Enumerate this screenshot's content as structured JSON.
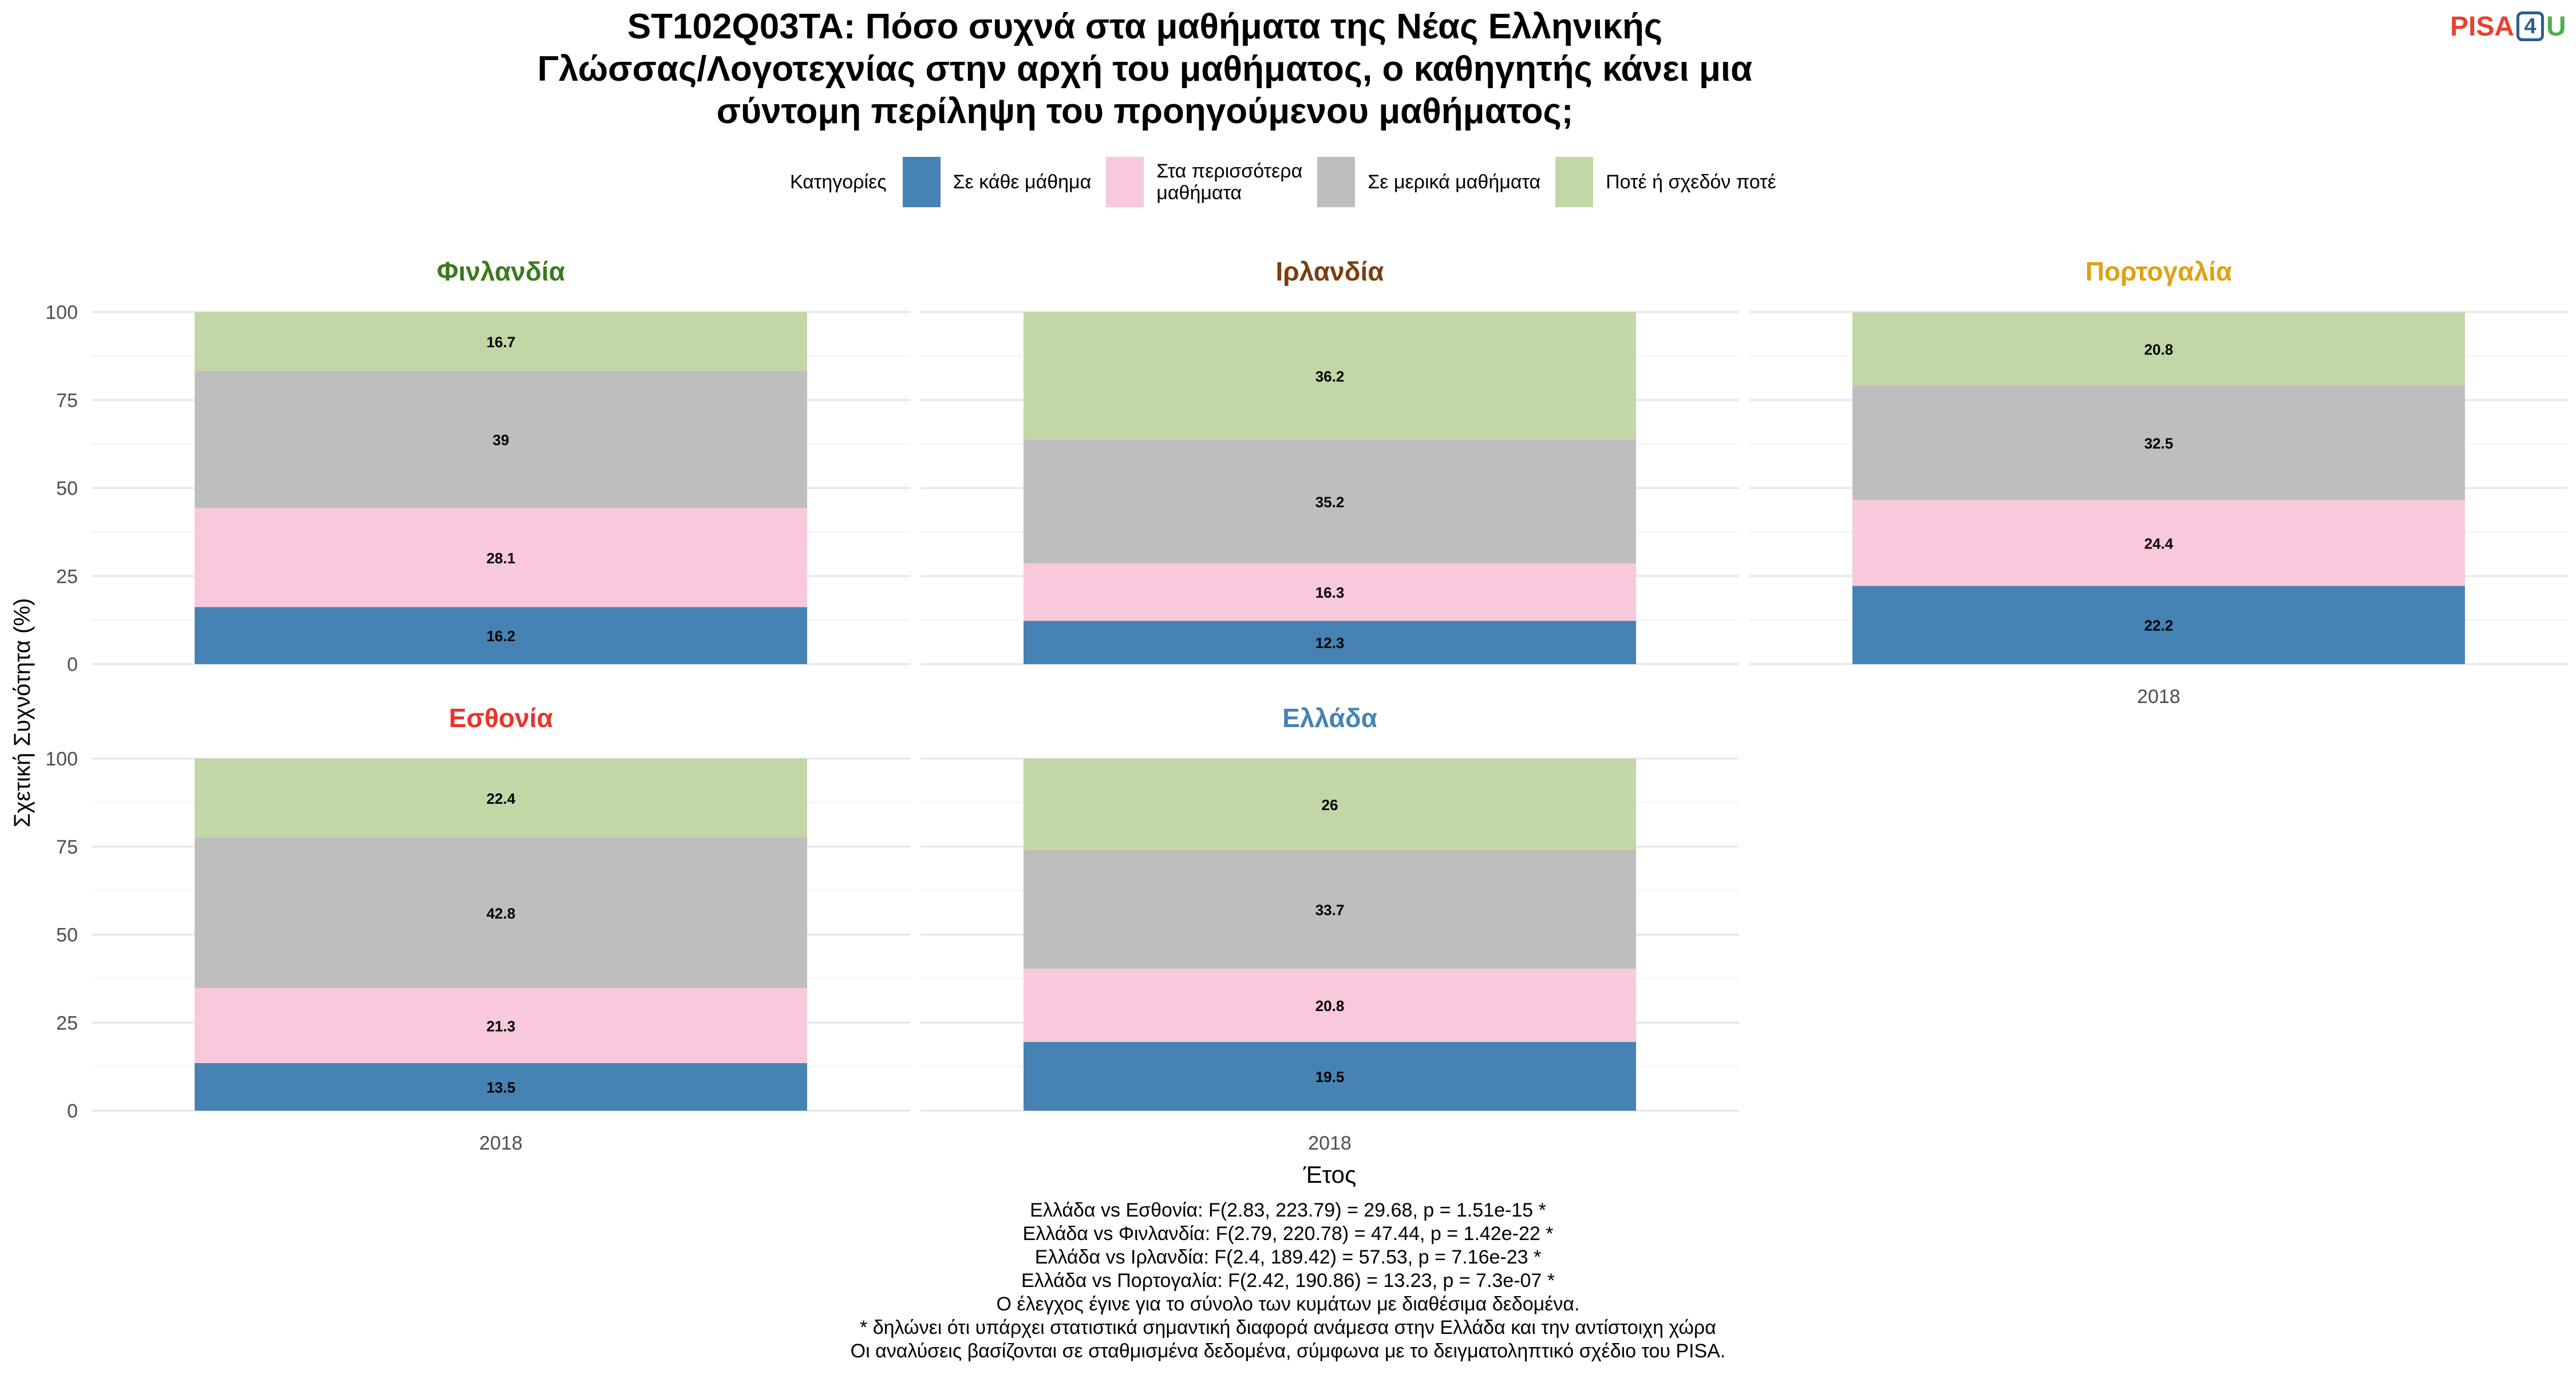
{
  "title": {
    "lines": [
      "ST102Q03TA: Πόσο συχνά στα μαθήματα της Νέας Ελληνικής",
      "Γλώσσας/Λογοτεχνίας στην αρχή του μαθήματος, ο καθηγητής κάνει μια",
      "σύντομη περίληψη του προηγούμενου μαθήματος;"
    ]
  },
  "logo": {
    "p": "PISA",
    "four": "4",
    "u": "U"
  },
  "legend": {
    "title": "Κατηγορίες",
    "items": [
      {
        "label": "Σε κάθε μάθημα",
        "color": "#4682B4"
      },
      {
        "label": "Στα περισσότερα\nμαθήματα",
        "color": "#F8C8DC"
      },
      {
        "label": "Σε μερικά μαθήματα",
        "color": "#BEBEBE"
      },
      {
        "label": "Ποτέ ή σχεδόν ποτέ",
        "color": "#C1D7A5"
      }
    ]
  },
  "chart_data": {
    "type": "bar",
    "stacked": true,
    "ylabel": "Σχετική Συχνότητα (%)",
    "xlabel": "Έτος",
    "ylim": [
      0,
      100
    ],
    "yticks": [
      0,
      25,
      50,
      75,
      100
    ],
    "categories": [
      "2018"
    ],
    "series_names": [
      "Σε κάθε μάθημα",
      "Στα περισσότερα μαθήματα",
      "Σε μερικά μαθήματα",
      "Ποτέ ή σχεδόν ποτέ"
    ],
    "series_colors": [
      "#4682B4",
      "#F8C8DC",
      "#BEBEBE",
      "#C1D7A5"
    ],
    "grid": true,
    "legend_position": "top",
    "panels": [
      {
        "country": "Φινλανδία",
        "color": "#3C7A1E",
        "values": [
          16.2,
          28.1,
          39,
          16.7
        ],
        "labels": [
          "16.2",
          "28.1",
          "39",
          "16.7"
        ],
        "show_xtick": false
      },
      {
        "country": "Ιρλανδία",
        "color": "#7A3E10",
        "values": [
          12.3,
          16.3,
          35.2,
          36.2
        ],
        "labels": [
          "12.3",
          "16.3",
          "35.2",
          "36.2"
        ],
        "show_xtick": false
      },
      {
        "country": "Πορτογαλία",
        "color": "#E0A010",
        "values": [
          22.2,
          24.4,
          32.5,
          20.8
        ],
        "labels": [
          "22.2",
          "24.4",
          "32.5",
          "20.8"
        ],
        "show_xtick": true
      },
      {
        "country": "Εσθονία",
        "color": "#E8342A",
        "values": [
          13.5,
          21.3,
          42.8,
          22.4
        ],
        "labels": [
          "13.5",
          "21.3",
          "42.8",
          "22.4"
        ],
        "show_xtick": true
      },
      {
        "country": "Ελλάδα",
        "color": "#4682B4",
        "values": [
          19.5,
          20.8,
          33.7,
          26
        ],
        "labels": [
          "19.5",
          "20.8",
          "33.7",
          "26"
        ],
        "show_xtick": true
      }
    ]
  },
  "footer": {
    "lines": [
      "Ελλάδα vs Εσθονία: F(2.83, 223.79) = 29.68, p = 1.51e-15 *",
      "Ελλάδα vs Φινλανδία: F(2.79, 220.78) = 47.44, p = 1.42e-22 *",
      "Ελλάδα vs Ιρλανδία: F(2.4, 189.42) = 57.53, p = 7.16e-23 *",
      "Ελλάδα vs Πορτογαλία: F(2.42, 190.86) = 13.23, p = 7.3e-07 *",
      "Ο έλεγχος έγινε για το σύνολο των κυμάτων με διαθέσιμα δεδομένα.",
      "* δηλώνει ότι υπάρχει στατιστικά σημαντική διαφορά ανάμεσα στην Ελλάδα και την αντίστοιχη χώρα",
      "Οι αναλύσεις βασίζονται σε σταθμισμένα δεδομένα, σύμφωνα με το δειγματοληπτικό σχέδιο του PISA."
    ]
  }
}
